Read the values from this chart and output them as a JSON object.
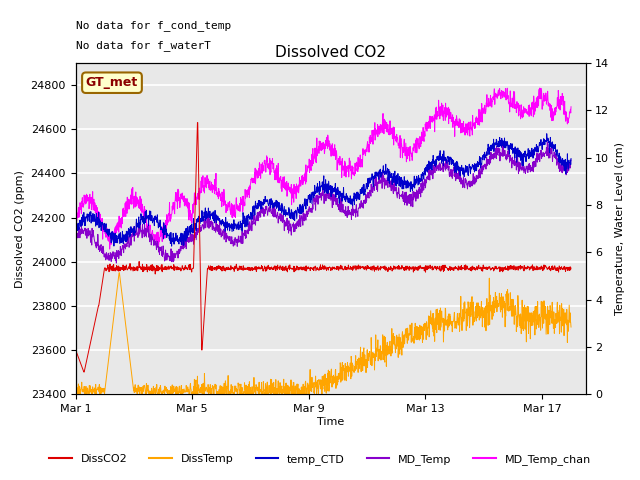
{
  "title": "Dissolved CO2",
  "xlabel": "Time",
  "ylabel_left": "Dissolved CO2 (ppm)",
  "ylabel_right": "Temperature, Water Level (cm)",
  "ylim_left": [
    23400,
    24900
  ],
  "ylim_right": [
    0,
    14
  ],
  "yticks_left": [
    23400,
    23600,
    23800,
    24000,
    24200,
    24400,
    24600,
    24800
  ],
  "yticks_right": [
    0,
    2,
    4,
    6,
    8,
    10,
    12,
    14
  ],
  "xtick_positions": [
    0,
    4,
    8,
    12,
    16
  ],
  "xtick_labels": [
    "Mar 1",
    "Mar 5",
    "Mar 9",
    "Mar 13",
    "Mar 17"
  ],
  "xlim": [
    0,
    17.5
  ],
  "note1": "No data for f_cond_temp",
  "note2": "No data for f_waterT",
  "gt_label": "GT_met",
  "plot_bg": "#e8e8e8",
  "grid_color": "white",
  "series_colors": {
    "DissCO2": "#dd0000",
    "DissTemp": "#ffa500",
    "temp_CTD": "#0000cc",
    "MD_Temp": "#8800cc",
    "MD_Temp_chan": "#ff00ff"
  },
  "legend_entries": [
    "DissCO2",
    "DissTemp",
    "temp_CTD",
    "MD_Temp",
    "MD_Temp_chan"
  ],
  "figsize": [
    6.4,
    4.8
  ],
  "dpi": 100
}
